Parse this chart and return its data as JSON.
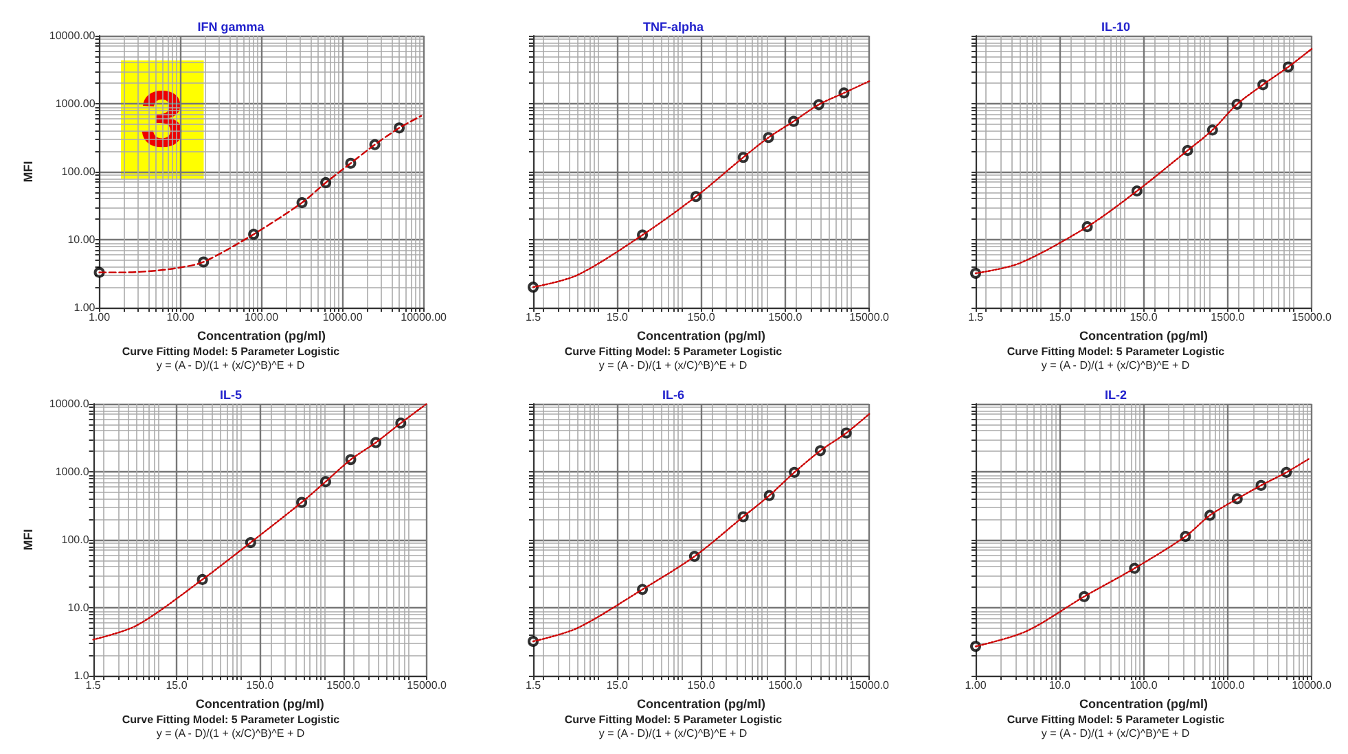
{
  "chart_data": [
    {
      "type": "scatter",
      "title": "IFN gamma",
      "subtitle": "Curve Fitting Model: 5 Parameter Logistic",
      "xlabel": "Concentration (pg/ml)",
      "ylabel": "MFI",
      "annotations": [
        "y = (A - D)/(1 + (x/C)^B)^E + D",
        "3"
      ],
      "log": "xy",
      "grid": true,
      "xlim": [
        1,
        10000
      ],
      "ylim": [
        1,
        10000
      ],
      "xticks": [
        {
          "value": 1,
          "label": "1.00"
        },
        {
          "value": 10,
          "label": "10.00"
        },
        {
          "value": 100,
          "label": "100.00"
        },
        {
          "value": 1000,
          "label": "1000.00"
        },
        {
          "value": 10000,
          "label": "10000.00"
        }
      ],
      "yticks": [
        {
          "value": 1,
          "label": "1.00"
        },
        {
          "value": 10,
          "label": "10.00"
        },
        {
          "value": 100,
          "label": "100.00"
        },
        {
          "value": 1000,
          "label": "1000.00"
        },
        {
          "value": 10000,
          "label": "10000.00"
        }
      ],
      "series": [
        {
          "type": "line",
          "color": "#cc0000",
          "line_style": "dashed",
          "marker": "none",
          "x": [
            1,
            2,
            5,
            10,
            19.3,
            80,
            316,
            620,
            1260,
            2500,
            5000,
            9300
          ],
          "values": [
            3.3,
            3.3,
            3.5,
            3.9,
            4.7,
            12,
            35,
            69,
            133,
            250,
            440,
            660
          ]
        },
        {
          "type": "scatter",
          "color": "#000000",
          "marker": "circle",
          "x": [
            1,
            19.3,
            80,
            316,
            620,
            1260,
            2500,
            5000
          ],
          "values": [
            3.3,
            4.7,
            12,
            35,
            69,
            133,
            250,
            440
          ]
        }
      ]
    },
    {
      "type": "scatter",
      "title": "TNF-alpha",
      "subtitle": "Curve Fitting Model: 5 Parameter Logistic",
      "xlabel": "Concentration (pg/ml)",
      "annotations": [
        "y = (A - D)/(1 + (x/C)^B)^E + D"
      ],
      "log": "xy",
      "grid": true,
      "tick_labels": "x",
      "xlim": [
        1.5,
        15000
      ],
      "ylim": [
        1,
        10000
      ],
      "xticks": [
        {
          "value": 1.5,
          "label": "1.5"
        },
        {
          "value": 15,
          "label": "15.0"
        },
        {
          "value": 150,
          "label": "150.0"
        },
        {
          "value": 1500,
          "label": "1500.0"
        },
        {
          "value": 15000,
          "label": "15000.0"
        }
      ],
      "yticks": [
        1,
        10,
        100,
        1000,
        10000
      ],
      "series": [
        {
          "type": "line",
          "color": "#cc0000",
          "line_style": "dotted",
          "marker": "none",
          "x": [
            1.5,
            5,
            30,
            130,
            475,
            950,
            1890,
            3770,
            7520,
            15000
          ],
          "values": [
            2.0,
            3.0,
            11.7,
            43,
            162,
            318,
            550,
            970,
            1440,
            2140
          ]
        },
        {
          "type": "scatter",
          "color": "#000000",
          "marker": "circle",
          "x": [
            1.5,
            30,
            130,
            475,
            950,
            1890,
            3770,
            7520
          ],
          "values": [
            2.0,
            11.7,
            43,
            162,
            318,
            550,
            970,
            1440
          ]
        }
      ]
    },
    {
      "type": "scatter",
      "title": "IL-10",
      "subtitle": "Curve Fitting Model: 5 Parameter Logistic",
      "xlabel": "Concentration (pg/ml)",
      "annotations": [
        "y = (A - D)/(1 + (x/C)^B)^E + D"
      ],
      "log": "xy",
      "grid": true,
      "tick_labels": "x",
      "xlim": [
        1.5,
        15000
      ],
      "ylim": [
        1,
        10000
      ],
      "xticks": [
        {
          "value": 1.5,
          "label": "1.5"
        },
        {
          "value": 15,
          "label": "15.0"
        },
        {
          "value": 150,
          "label": "150.0"
        },
        {
          "value": 1500,
          "label": "1500.0"
        },
        {
          "value": 15000,
          "label": "15000.0"
        }
      ],
      "yticks": [
        1,
        10,
        100,
        1000,
        10000
      ],
      "series": [
        {
          "type": "line",
          "color": "#cc0000",
          "line_style": "dotted",
          "marker": "none",
          "x": [
            1.5,
            5,
            32,
            125,
            500,
            990,
            1940,
            3940,
            7900,
            15000
          ],
          "values": [
            3.2,
            4.5,
            15.5,
            52,
            205,
            410,
            980,
            1900,
            3470,
            6400
          ]
        },
        {
          "type": "scatter",
          "color": "#000000",
          "marker": "circle",
          "x": [
            1.5,
            32,
            125,
            500,
            990,
            1940,
            3940,
            7900
          ],
          "values": [
            3.2,
            15.5,
            52,
            205,
            410,
            980,
            1900,
            3470
          ]
        }
      ]
    },
    {
      "type": "scatter",
      "title": "IL-5",
      "subtitle": "Curve Fitting Model: 5 Parameter Logistic",
      "xlabel": "Concentration (pg/ml)",
      "ylabel": "MFI",
      "annotations": [
        "y = (A - D)/(1 + (x/C)^B)^E + D"
      ],
      "log": "xy",
      "grid": true,
      "xlim": [
        1.5,
        15000
      ],
      "ylim": [
        1,
        10000
      ],
      "xticks": [
        {
          "value": 1.5,
          "label": "1.5"
        },
        {
          "value": 15,
          "label": "15.0"
        },
        {
          "value": 150,
          "label": "150.0"
        },
        {
          "value": 1500,
          "label": "1500.0"
        },
        {
          "value": 15000,
          "label": "15000.0"
        }
      ],
      "yticks": [
        {
          "value": 1,
          "label": "1.0"
        },
        {
          "value": 10,
          "label": "10.0"
        },
        {
          "value": 100,
          "label": "100.0"
        },
        {
          "value": 1000,
          "label": "1000.0"
        },
        {
          "value": 10000,
          "label": "10000.0"
        }
      ],
      "series": [
        {
          "type": "line",
          "color": "#cc0000",
          "line_style": "dotted",
          "marker": "none",
          "x": [
            1.5,
            5,
            30.6,
            116,
            475,
            920,
            1840,
            3680,
            7330,
            15000
          ],
          "values": [
            3.4,
            5.5,
            26,
            91,
            355,
            715,
            1510,
            2690,
            5200,
            10000
          ]
        },
        {
          "type": "scatter",
          "color": "#000000",
          "marker": "circle",
          "x": [
            30.6,
            116,
            475,
            920,
            1840,
            3680,
            7330
          ],
          "values": [
            26,
            91,
            355,
            715,
            1510,
            2690,
            5200
          ]
        }
      ]
    },
    {
      "type": "scatter",
      "title": "IL-6",
      "subtitle": "Curve Fitting Model: 5 Parameter Logistic",
      "xlabel": "Concentration (pg/ml)",
      "annotations": [
        "y = (A - D)/(1 + (x/C)^B)^E + D"
      ],
      "log": "xy",
      "grid": true,
      "tick_labels": "x",
      "xlim": [
        1.5,
        15000
      ],
      "ylim": [
        1,
        10000
      ],
      "xticks": [
        {
          "value": 1.5,
          "label": "1.5"
        },
        {
          "value": 15,
          "label": "15.0"
        },
        {
          "value": 150,
          "label": "150.0"
        },
        {
          "value": 1500,
          "label": "1500.0"
        },
        {
          "value": 15000,
          "label": "15000.0"
        }
      ],
      "yticks": [
        1,
        10,
        100,
        1000,
        10000
      ],
      "series": [
        {
          "type": "line",
          "color": "#cc0000",
          "line_style": "dotted",
          "marker": "none",
          "x": [
            1.5,
            5,
            30,
            125,
            475,
            970,
            1930,
            3930,
            8000,
            15000
          ],
          "values": [
            3.2,
            5,
            18.6,
            57,
            218,
            447,
            980,
            2040,
            3720,
            7070
          ]
        },
        {
          "type": "scatter",
          "color": "#000000",
          "marker": "circle",
          "x": [
            1.5,
            30,
            125,
            475,
            970,
            1930,
            3930,
            8000
          ],
          "values": [
            3.2,
            18.6,
            57,
            218,
            447,
            980,
            2040,
            3720
          ]
        }
      ]
    },
    {
      "type": "scatter",
      "title": "IL-2",
      "subtitle": "Curve Fitting Model: 5 Parameter Logistic",
      "xlabel": "Concentration (pg/ml)",
      "annotations": [
        "y = (A - D)/(1 + (x/C)^B)^E + D"
      ],
      "log": "xy",
      "grid": true,
      "tick_labels": "x",
      "xlim": [
        1,
        10000
      ],
      "ylim": [
        1,
        10000
      ],
      "xticks": [
        {
          "value": 1,
          "label": "1.00"
        },
        {
          "value": 10,
          "label": "10.0"
        },
        {
          "value": 100,
          "label": "100.0"
        },
        {
          "value": 1000,
          "label": "1000.0"
        },
        {
          "value": 10000,
          "label": "10000.0"
        }
      ],
      "yticks": [
        1,
        10,
        100,
        1000,
        10000
      ],
      "series": [
        {
          "type": "line",
          "color": "#cc0000",
          "line_style": "dotted",
          "marker": "none",
          "x": [
            1,
            4,
            19.6,
            78,
            315,
            615,
            1300,
            2500,
            5000,
            9300
          ],
          "values": [
            2.7,
            4.5,
            14.6,
            38,
            112,
            229,
            400,
            630,
            980,
            1550
          ]
        },
        {
          "type": "scatter",
          "color": "#000000",
          "marker": "circle",
          "x": [
            1,
            19.6,
            78,
            315,
            615,
            1300,
            2500,
            5000
          ],
          "values": [
            2.7,
            14.6,
            38,
            112,
            229,
            400,
            630,
            980
          ]
        }
      ]
    }
  ]
}
